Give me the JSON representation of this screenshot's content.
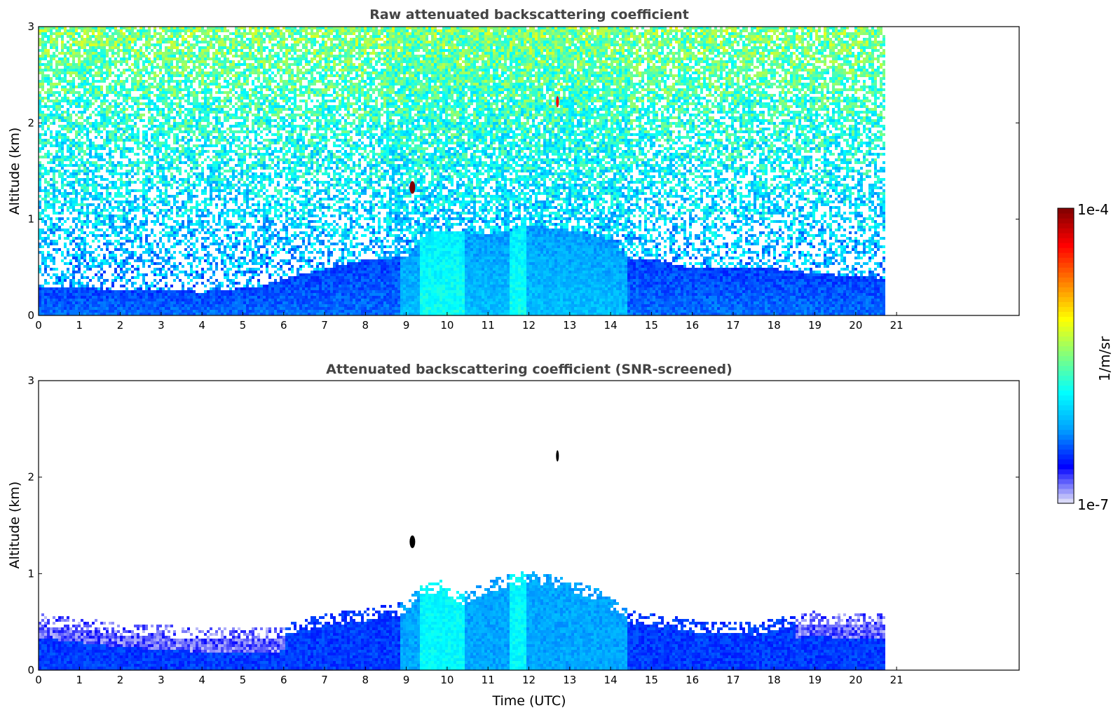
{
  "colors": {
    "jet_stops": [
      "#e8e8f8",
      "#0000ff",
      "#00a0ff",
      "#00ffff",
      "#80ff80",
      "#ffff00",
      "#ff8000",
      "#ff0000",
      "#800000"
    ],
    "background": "#ffffff",
    "title": "#444444",
    "spot": "#000000"
  },
  "colorbar": {
    "max_label": "1e-4",
    "min_label": "1e-7",
    "unit_label": "1/m/sr",
    "scale": "log"
  },
  "chart_data": [
    {
      "type": "heatmap",
      "title": "Raw attenuated backscattering coefficient",
      "xlabel": "",
      "ylabel": "Altitude (km)",
      "xlim": [
        0,
        24
      ],
      "ylim": [
        0,
        3
      ],
      "x_ticks": [
        "0",
        "1",
        "2",
        "3",
        "4",
        "5",
        "6",
        "7",
        "8",
        "9",
        "10",
        "11",
        "12",
        "13",
        "14",
        "15",
        "16",
        "17",
        "18",
        "19",
        "20",
        "21"
      ],
      "y_ticks": [
        "0",
        "1",
        "2",
        "3"
      ],
      "data_end_time": 20.7,
      "boundary_layer_top_km": [
        [
          0,
          0.32
        ],
        [
          2,
          0.28
        ],
        [
          4,
          0.26
        ],
        [
          5.5,
          0.32
        ],
        [
          6,
          0.4
        ],
        [
          7,
          0.5
        ],
        [
          8,
          0.6
        ],
        [
          9,
          0.62
        ],
        [
          9.5,
          0.9
        ],
        [
          10,
          0.9
        ],
        [
          11,
          0.85
        ],
        [
          12,
          0.95
        ],
        [
          13,
          0.9
        ],
        [
          14,
          0.8
        ],
        [
          14.4,
          0.6
        ],
        [
          15,
          0.6
        ],
        [
          16,
          0.5
        ],
        [
          17,
          0.5
        ],
        [
          18,
          0.5
        ],
        [
          19,
          0.45
        ],
        [
          20,
          0.42
        ],
        [
          20.7,
          0.4
        ]
      ],
      "features": [
        {
          "label": "",
          "time": 9.15,
          "altitude_km": 1.33,
          "value": "1e-4"
        },
        {
          "label": "",
          "time": 12.7,
          "altitude_km": 2.22,
          "value": "3e-5"
        }
      ]
    },
    {
      "type": "heatmap",
      "title": "Attenuated backscattering coefficient (SNR-screened)",
      "xlabel": "Time (UTC)",
      "ylabel": "Altitude (km)",
      "xlim": [
        0,
        24
      ],
      "ylim": [
        0,
        3
      ],
      "x_ticks": [
        "0",
        "1",
        "2",
        "3",
        "4",
        "5",
        "6",
        "7",
        "8",
        "9",
        "10",
        "11",
        "12",
        "13",
        "14",
        "15",
        "16",
        "17",
        "18",
        "19",
        "20",
        "21"
      ],
      "y_ticks": [
        "0",
        "1",
        "2",
        "3"
      ],
      "data_end_time": 20.7,
      "boundary_layer_top_km": [
        [
          0,
          0.6
        ],
        [
          1,
          0.55
        ],
        [
          2,
          0.5
        ],
        [
          3,
          0.48
        ],
        [
          4,
          0.45
        ],
        [
          5,
          0.45
        ],
        [
          5.8,
          0.45
        ],
        [
          6.5,
          0.55
        ],
        [
          7,
          0.6
        ],
        [
          8,
          0.65
        ],
        [
          9,
          0.72
        ],
        [
          9.3,
          0.9
        ],
        [
          9.8,
          0.95
        ],
        [
          10.3,
          0.8
        ],
        [
          11,
          0.95
        ],
        [
          12,
          1.05
        ],
        [
          13,
          0.95
        ],
        [
          13.7,
          0.85
        ],
        [
          14.2,
          0.7
        ],
        [
          14.5,
          0.62
        ],
        [
          15,
          0.6
        ],
        [
          15.8,
          0.55
        ],
        [
          16.5,
          0.5
        ],
        [
          17,
          0.52
        ],
        [
          17.5,
          0.5
        ],
        [
          18,
          0.55
        ],
        [
          18.5,
          0.6
        ],
        [
          19,
          0.62
        ],
        [
          19.5,
          0.6
        ],
        [
          20,
          0.6
        ],
        [
          20.7,
          0.6
        ]
      ],
      "features": [
        {
          "label": "",
          "time": 9.15,
          "altitude_km": 1.33,
          "value": "masked"
        },
        {
          "label": "",
          "time": 12.7,
          "altitude_km": 2.22,
          "value": "masked"
        }
      ]
    }
  ]
}
